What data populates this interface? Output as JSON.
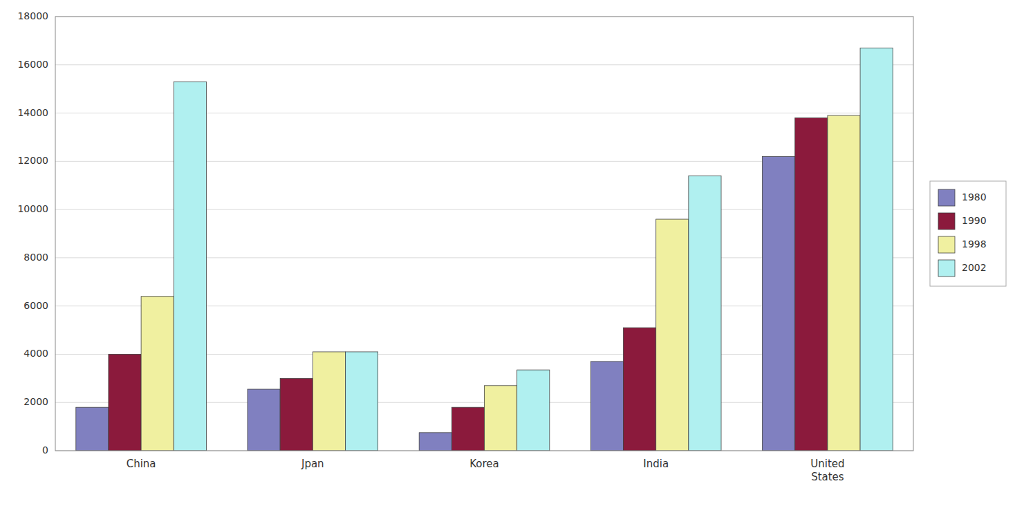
{
  "chart_data": {
    "type": "bar",
    "categories": [
      "China",
      "Jpan",
      "Korea",
      "India",
      "United\nStates"
    ],
    "series": [
      {
        "name": "1980",
        "color": "#8080c0",
        "values": [
          1800,
          2550,
          750,
          3700,
          12200
        ]
      },
      {
        "name": "1990",
        "color": "#8b1a3c",
        "values": [
          4000,
          3000,
          1800,
          5100,
          13800
        ]
      },
      {
        "name": "1998",
        "color": "#f0f0a0",
        "values": [
          6400,
          4100,
          2700,
          9600,
          13900
        ]
      },
      {
        "name": "2002",
        "color": "#b0f0f0",
        "values": [
          15300,
          4100,
          3350,
          11400,
          16700
        ]
      }
    ],
    "ylim": [
      0,
      18000
    ],
    "yticks": [
      0,
      2000,
      4000,
      6000,
      8000,
      10000,
      12000,
      14000,
      16000,
      18000
    ],
    "grid": true,
    "legend": "right"
  }
}
